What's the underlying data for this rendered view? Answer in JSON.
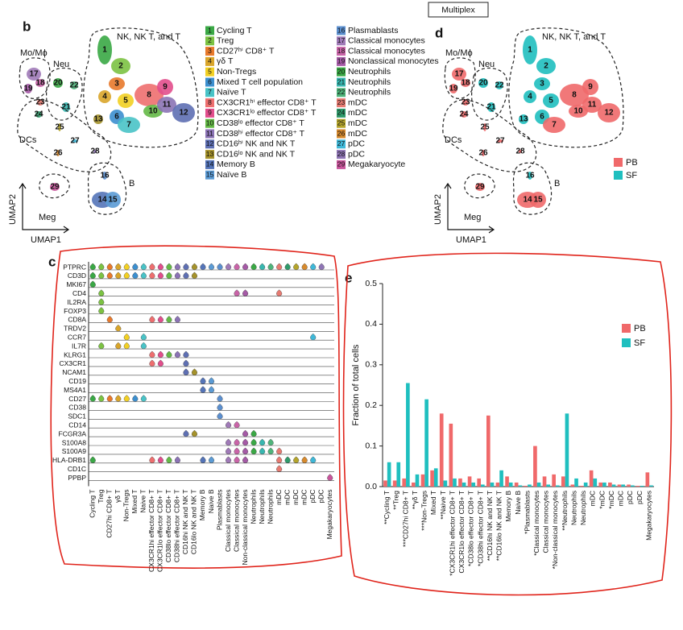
{
  "header": "Multiplex",
  "panel_labels": [
    "b",
    "c",
    "d",
    "e"
  ],
  "umap": {
    "x_label": "UMAP1",
    "y_label": "UMAP2",
    "groups": [
      "NK, NK T, and T",
      "Mo/Mϕ",
      "Neu",
      "DCs",
      "Meg",
      "B"
    ],
    "clusters": [
      {
        "number": 1,
        "label": "Cycling T",
        "color": "#3aa845"
      },
      {
        "number": 2,
        "label": "Treg",
        "color": "#7cc243"
      },
      {
        "number": 3,
        "label": "CD27ʰⁱ CD8⁺ T",
        "color": "#e8792b"
      },
      {
        "number": 4,
        "label": "γδ T",
        "color": "#d9a52a"
      },
      {
        "number": 5,
        "label": "Non-Tregs",
        "color": "#f2d024"
      },
      {
        "number": 6,
        "label": "Mixed T cell population",
        "color": "#3c8fcf"
      },
      {
        "number": 7,
        "label": "Naïve T",
        "color": "#49c3c7"
      },
      {
        "number": 8,
        "label": "CX3CR1ʰⁱ effector CD8⁺ T",
        "color": "#ee6f6f"
      },
      {
        "number": 9,
        "label": "CX3CR1ˡᵒ effector CD8⁺ T",
        "color": "#e24e8c"
      },
      {
        "number": 10,
        "label": "CD38ˡᵒ effector CD8⁺ T",
        "color": "#64b946"
      },
      {
        "number": 11,
        "label": "CD38ʰⁱ effector CD8⁺ T",
        "color": "#8b73b5"
      },
      {
        "number": 12,
        "label": "CD16ʰⁱ NK and NK T",
        "color": "#5e6fb3"
      },
      {
        "number": 13,
        "label": "CD16ˡᵒ NK and NK T",
        "color": "#a5922b"
      },
      {
        "number": 14,
        "label": "Memory B",
        "color": "#5474b8"
      },
      {
        "number": 15,
        "label": "Naïve B",
        "color": "#5b9bd5"
      },
      {
        "number": 16,
        "label": "Plasmablasts",
        "color": "#5b8fcf"
      },
      {
        "number": 17,
        "label": "Classical monocytes",
        "color": "#a07ab8"
      },
      {
        "number": 18,
        "label": "Classical monocytes",
        "color": "#c964a8"
      },
      {
        "number": 19,
        "label": "Nonclassical monocytes",
        "color": "#a55aa6"
      },
      {
        "number": 20,
        "label": "Neutrophils",
        "color": "#3aa845"
      },
      {
        "number": 21,
        "label": "Neutrophils",
        "color": "#38b7b0"
      },
      {
        "number": 22,
        "label": "Neutrophils",
        "color": "#4fb47a"
      },
      {
        "number": 23,
        "label": "mDC",
        "color": "#e77b72"
      },
      {
        "number": 24,
        "label": "mDC",
        "color": "#2f9a6a"
      },
      {
        "number": 25,
        "label": "mDC",
        "color": "#b5a52b"
      },
      {
        "number": 26,
        "label": "mDC",
        "color": "#d78a2d"
      },
      {
        "number": 27,
        "label": "pDC",
        "color": "#3fb8d8"
      },
      {
        "number": 28,
        "label": "pDC",
        "color": "#8f75b5"
      },
      {
        "number": 29,
        "label": "Megakaryocyte",
        "color": "#c9559c"
      }
    ]
  },
  "chart_data": [
    {
      "type": "violin",
      "categories": [
        "Cycling T",
        "Treg",
        "CD27hi CD8+ T",
        "γδ T",
        "Non-Tregs",
        "Mixed T",
        "Naive T",
        "CX3CR1hi effector CD8+ T",
        "CX3CR1lo effector CD8+ T",
        "CD38lo effector CD8+ T",
        "CD38hi effector CD8+ T",
        "CD16hi NK and NK T",
        "CD16lo NK and NK T",
        "Memory B",
        "Naive B",
        "Plasmablasts",
        "Classical monocytes",
        "Classical monocytes",
        "Non-classical monocytes",
        "Neutrophils",
        "Neutrophils",
        "Neutrophils",
        "mDC",
        "mDC",
        "mDC",
        "mDC",
        "pDC",
        "pDC",
        "Megakaryocytes"
      ],
      "series": [
        {
          "name": "PTPRC",
          "clusters": [
            0,
            1,
            2,
            3,
            4,
            5,
            6,
            7,
            8,
            9,
            10,
            11,
            12,
            13,
            14,
            15,
            16,
            17,
            18,
            19,
            20,
            21,
            22,
            23,
            24,
            25,
            26,
            27
          ]
        },
        {
          "name": "CD3D",
          "clusters": [
            0,
            1,
            2,
            3,
            4,
            5,
            6,
            7,
            8,
            9,
            10,
            11,
            12
          ]
        },
        {
          "name": "MKI67",
          "clusters": [
            0
          ]
        },
        {
          "name": "CD4",
          "clusters": [
            1,
            17,
            18,
            22
          ]
        },
        {
          "name": "IL2RA",
          "clusters": [
            1
          ]
        },
        {
          "name": "FOXP3",
          "clusters": [
            1
          ]
        },
        {
          "name": "CD8A",
          "clusters": [
            2,
            7,
            8,
            9,
            10
          ]
        },
        {
          "name": "TRDV2",
          "clusters": [
            3
          ]
        },
        {
          "name": "CCR7",
          "clusters": [
            4,
            6,
            26
          ]
        },
        {
          "name": "IL7R",
          "clusters": [
            1,
            3,
            4,
            6
          ]
        },
        {
          "name": "KLRG1",
          "clusters": [
            7,
            8,
            9,
            10,
            11
          ]
        },
        {
          "name": "CX3CR1",
          "clusters": [
            7,
            8,
            11
          ]
        },
        {
          "name": "NCAM1",
          "clusters": [
            11,
            12
          ]
        },
        {
          "name": "CD19",
          "clusters": [
            13,
            14
          ]
        },
        {
          "name": "MS4A1",
          "clusters": [
            13,
            14
          ]
        },
        {
          "name": "CD27",
          "clusters": [
            0,
            1,
            2,
            3,
            4,
            5,
            6,
            15
          ]
        },
        {
          "name": "CD38",
          "clusters": [
            15
          ]
        },
        {
          "name": "SDC1",
          "clusters": [
            15
          ]
        },
        {
          "name": "CD14",
          "clusters": [
            16,
            17
          ]
        },
        {
          "name": "FCGR3A",
          "clusters": [
            11,
            12,
            18,
            19
          ]
        },
        {
          "name": "S100A8",
          "clusters": [
            16,
            17,
            18,
            19,
            20,
            21
          ]
        },
        {
          "name": "S100A9",
          "clusters": [
            16,
            17,
            18,
            19,
            20,
            21,
            22
          ]
        },
        {
          "name": "HLA-DRB1",
          "clusters": [
            0,
            7,
            8,
            9,
            10,
            13,
            14,
            16,
            17,
            18,
            22,
            23,
            24,
            25,
            26
          ]
        },
        {
          "name": "CD1C",
          "clusters": [
            22
          ]
        },
        {
          "name": "PPBP",
          "clusters": [
            28
          ]
        }
      ]
    },
    {
      "type": "bar",
      "y_label": "Fraction of total cells",
      "categories": [
        "**Cycling T",
        "**Treg",
        "***CD27hi CD8+ T",
        "**γδ T",
        "***Non-Tregs",
        "Mixed T",
        "**Naive T",
        "*CX3CR1hi effector CD8+ T",
        "CX3CR1lo effector CD8+ T",
        "*CD38lo effector CD8+ T",
        "*CD38hi effector CD8+ T",
        "**CD16hi NK and NK T",
        "**CD16lo NK and NK T",
        "Memory B",
        "Naive B",
        "*Plasmablasts",
        "*Classical monocytes",
        "Classical monocytes",
        "*Non-classical monocytes",
        "**Neutrophils",
        "Neutrophils",
        "Neutrophils",
        "mDC",
        "*mDC",
        "*mDC",
        "mDC",
        "pDC",
        "pDC",
        "Megakaryocytes"
      ],
      "series": [
        {
          "name": "PB",
          "color": "#f0696a",
          "values": [
            0.015,
            0.015,
            0.02,
            0.01,
            0.03,
            0.04,
            0.18,
            0.155,
            0.02,
            0.025,
            0.02,
            0.175,
            0.01,
            0.025,
            0.01,
            0.002,
            0.1,
            0.025,
            0.03,
            0.025,
            0.005,
            0.002,
            0.04,
            0.01,
            0.01,
            0.005,
            0.005,
            0.002,
            0.035
          ]
        },
        {
          "name": "SF",
          "color": "#1fbfbf",
          "values": [
            0.06,
            0.06,
            0.255,
            0.03,
            0.215,
            0.045,
            0.015,
            0.02,
            0.01,
            0.01,
            0.005,
            0.01,
            0.04,
            0.01,
            0.003,
            0.005,
            0.01,
            0.005,
            0.003,
            0.18,
            0.02,
            0.01,
            0.02,
            0.01,
            0.005,
            0.005,
            0.003,
            0.002,
            0.003
          ]
        }
      ],
      "ylim": [
        0,
        0.5
      ],
      "yticks": [
        {
          "value": 0,
          "label": "0.0"
        },
        0.1,
        0.2,
        0.3,
        0.4,
        0.5
      ],
      "legend": "upper right"
    }
  ]
}
